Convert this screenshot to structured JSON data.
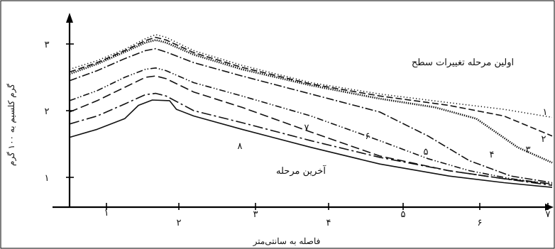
{
  "chart_data": {
    "type": "line",
    "title": "",
    "xlabel": "فاصله به سانتی‌متر",
    "ylabel": "گرم کلسیم به ۱۰۰ گرم",
    "xlim": [
      0,
      7
    ],
    "ylim": [
      0.6,
      3.4
    ],
    "x_ticks": [
      {
        "value": 0.5,
        "label": "۱"
      },
      {
        "value": 1.5,
        "label": "۲"
      },
      {
        "value": 2.5,
        "label": "۳"
      },
      {
        "value": 3.5,
        "label": "۴"
      },
      {
        "value": 4.5,
        "label": "۵"
      },
      {
        "value": 5.5,
        "label": "۶"
      },
      {
        "value": 6.5,
        "label": "۷"
      }
    ],
    "y_ticks": [
      {
        "value": 1,
        "label": "۱"
      },
      {
        "value": 2,
        "label": "۲"
      },
      {
        "value": 3,
        "label": "۳"
      }
    ],
    "annotations": {
      "first_stage": "اولین مرحله تغییرات سطح",
      "last_stage": "آخرین مرحله"
    },
    "series": [
      {
        "label": "۱",
        "style": "dot",
        "x": [
          0,
          0.4,
          0.8,
          1.1,
          1.25,
          1.4,
          1.8,
          2.5,
          3.5,
          4.5,
          5.5,
          6.3,
          7
        ],
        "y": [
          2.62,
          2.75,
          2.92,
          3.08,
          3.14,
          3.1,
          2.9,
          2.68,
          2.42,
          2.25,
          2.12,
          2.02,
          1.9
        ]
      },
      {
        "label": "۲",
        "style": "dash",
        "x": [
          0,
          0.4,
          0.8,
          1.1,
          1.25,
          1.4,
          1.8,
          2.5,
          3.5,
          4.5,
          5.5,
          6.3,
          7
        ],
        "y": [
          2.58,
          2.72,
          2.9,
          3.05,
          3.1,
          3.06,
          2.87,
          2.65,
          2.4,
          2.22,
          2.08,
          1.92,
          1.62
        ]
      },
      {
        "label": "۳",
        "style": "dense-dot",
        "x": [
          0,
          0.4,
          0.8,
          1.1,
          1.25,
          1.4,
          1.8,
          2.5,
          3.5,
          4.5,
          5.3,
          5.9,
          6.5,
          7
        ],
        "y": [
          2.55,
          2.7,
          2.88,
          3.02,
          3.06,
          3.02,
          2.84,
          2.62,
          2.38,
          2.18,
          2.05,
          1.88,
          1.45,
          1.22
        ]
      },
      {
        "label": "۴",
        "style": "dash-dot",
        "x": [
          0,
          0.4,
          0.8,
          1.1,
          1.25,
          1.4,
          1.8,
          2.5,
          3.5,
          4.5,
          5.2,
          5.8,
          6.4,
          7
        ],
        "y": [
          2.45,
          2.6,
          2.78,
          2.9,
          2.93,
          2.88,
          2.72,
          2.52,
          2.25,
          1.98,
          1.62,
          1.25,
          1.02,
          0.92
        ]
      },
      {
        "label": "۵",
        "style": "dash-dot-dot",
        "x": [
          0,
          0.4,
          0.8,
          1.1,
          1.25,
          1.4,
          1.8,
          2.5,
          3.5,
          4.5,
          5.2,
          5.8,
          6.4,
          7
        ],
        "y": [
          2.15,
          2.3,
          2.5,
          2.62,
          2.64,
          2.6,
          2.42,
          2.22,
          1.92,
          1.55,
          1.28,
          1.1,
          0.98,
          0.9
        ]
      },
      {
        "label": "۶",
        "style": "long-dash",
        "x": [
          0,
          0.4,
          0.8,
          1.1,
          1.25,
          1.4,
          1.8,
          2.5,
          3.5,
          4.5,
          5.5,
          6.3,
          7
        ],
        "y": [
          1.98,
          2.15,
          2.35,
          2.5,
          2.52,
          2.48,
          2.28,
          2.05,
          1.68,
          1.32,
          1.1,
          0.98,
          0.9
        ]
      },
      {
        "label": "۷",
        "style": "long-dash-dot",
        "x": [
          0,
          0.4,
          0.8,
          1.1,
          1.25,
          1.4,
          1.8,
          2.5,
          3.5,
          4.5,
          5.5,
          6.3,
          7
        ],
        "y": [
          1.8,
          1.92,
          2.1,
          2.24,
          2.26,
          2.22,
          2.0,
          1.82,
          1.55,
          1.3,
          1.1,
          0.98,
          0.88
        ]
      },
      {
        "label": "۸",
        "style": "solid",
        "x": [
          0,
          0.4,
          0.8,
          1.0,
          1.2,
          1.45,
          1.55,
          1.8,
          2.5,
          3.5,
          4.5,
          5.5,
          6.3,
          7
        ],
        "y": [
          1.6,
          1.72,
          1.88,
          2.08,
          2.16,
          2.15,
          2.02,
          1.92,
          1.72,
          1.45,
          1.2,
          1.02,
          0.92,
          0.85
        ]
      }
    ]
  }
}
